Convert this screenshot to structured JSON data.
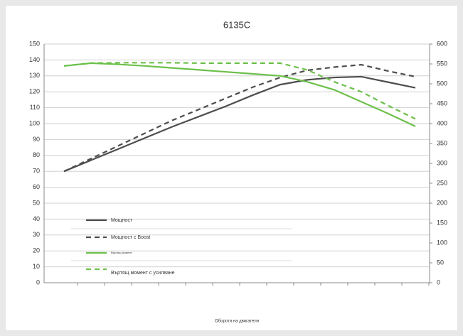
{
  "chart_data": {
    "type": "line",
    "title": "6135C",
    "x_label": "Обороти на двигателя",
    "categories": [
      null,
      null,
      null,
      null,
      null,
      null,
      null,
      null,
      null,
      null,
      null,
      null,
      null,
      null
    ],
    "series": [
      {
        "name": "Мощност",
        "color": "#4d4d4d",
        "dash": false,
        "values": [
          70,
          77,
          84,
          91,
          98,
          104.5,
          111,
          118,
          124.5,
          127.5,
          129,
          129.5,
          126,
          122.5
        ]
      },
      {
        "name": "Мощност с Boost",
        "color": "#4d4d4d",
        "dash": true,
        "values": [
          70,
          78,
          86,
          94,
          102,
          109,
          116,
          123,
          129,
          133.5,
          135.5,
          137,
          133,
          129.5
        ]
      },
      {
        "name": "Въртящ момент",
        "color": "#6cc04a",
        "dash": false,
        "axis": "y2",
        "values": [
          545,
          552,
          549,
          545,
          540,
          535,
          530,
          525,
          520,
          505,
          485,
          455,
          425,
          393
        ]
      },
      {
        "name": "Въртящ момент с усилване",
        "color": "#6cc04a",
        "dash": true,
        "axis": "y2",
        "values": [
          545,
          552,
          553,
          553,
          553,
          552,
          552,
          552,
          552,
          535,
          505,
          480,
          445,
          412
        ]
      }
    ],
    "ylim": [
      0,
      150
    ],
    "yticks": [
      0,
      10,
      20,
      30,
      40,
      50,
      60,
      70,
      80,
      90,
      100,
      110,
      120,
      130,
      140,
      150
    ],
    "y2lim": [
      0,
      600
    ],
    "y2ticks": [
      0,
      50,
      100,
      150,
      200,
      250,
      300,
      350,
      400,
      450,
      500,
      550,
      600
    ],
    "grid": true,
    "legend": "lower-left"
  }
}
